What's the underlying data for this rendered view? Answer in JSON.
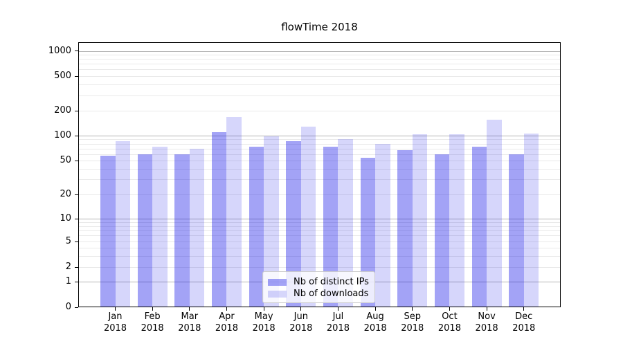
{
  "title": "flowTime 2018",
  "chart_data": {
    "type": "bar",
    "title": "flowTime 2018",
    "x_categories": [
      "Jan 2018",
      "Feb 2018",
      "Mar 2018",
      "Apr 2018",
      "May 2018",
      "Jun 2018",
      "Jul 2018",
      "Aug 2018",
      "Sep 2018",
      "Oct 2018",
      "Nov 2018",
      "Dec 2018"
    ],
    "series": [
      {
        "name": "Nb of distinct IPs",
        "color": "rgba(0,0,230,0.36)",
        "values": [
          57,
          60,
          60,
          111,
          73,
          85,
          73,
          54,
          67,
          59,
          73,
          60
        ]
      },
      {
        "name": "Nb of downloads",
        "color": "rgba(0,0,230,0.16)",
        "values": [
          85,
          73,
          70,
          168,
          99,
          129,
          90,
          79,
          103,
          103,
          156,
          105
        ]
      }
    ],
    "y_axis": {
      "scale": "symlog",
      "ticks": [
        0,
        1,
        2,
        5,
        10,
        20,
        50,
        100,
        200,
        500,
        1000
      ],
      "major_gridlines": [
        1,
        10,
        100,
        1000
      ],
      "ylim": [
        0,
        1300
      ]
    },
    "legend": {
      "position": "inside-lower-center",
      "grid": "on"
    }
  },
  "style": {
    "major_grid_color": "#b3b3b3",
    "minor_grid_color": "#e9e9e9",
    "spine_color": "#000000",
    "text_color": "#000000",
    "legend_border_color": "#cccccc",
    "legend_background": "rgba(255,255,255,0.8)"
  }
}
